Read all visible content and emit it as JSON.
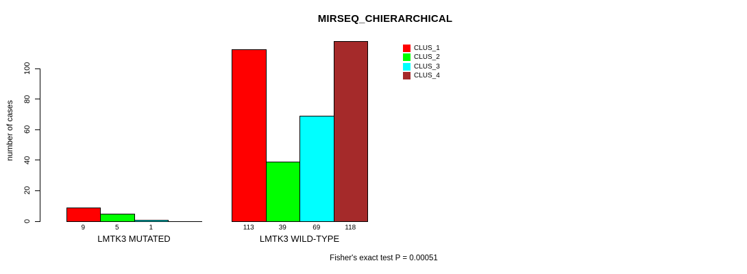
{
  "title": "MIRSEQ_CHIERARCHICAL",
  "y_axis": {
    "label": "number of cases",
    "ticks": [
      0,
      20,
      40,
      60,
      80,
      100
    ]
  },
  "legend": {
    "items": [
      {
        "label": "CLUS_1",
        "color": "#FF0000"
      },
      {
        "label": "CLUS_2",
        "color": "#00FF00"
      },
      {
        "label": "CLUS_3",
        "color": "#00FFFF"
      },
      {
        "label": "CLUS_4",
        "color": "#A52A2A"
      }
    ]
  },
  "footer": "Fisher's exact test P = 0.00051",
  "chart_data": {
    "type": "bar",
    "grouped": true,
    "title": "MIRSEQ_CHIERARCHICAL",
    "ylabel": "number of cases",
    "xlabel": "",
    "ylim": [
      0,
      118
    ],
    "yticks": [
      0,
      20,
      40,
      60,
      80,
      100
    ],
    "grid": false,
    "legend_position": "top-right",
    "categories": [
      "LMTK3 MUTATED",
      "LMTK3 WILD-TYPE"
    ],
    "series": [
      {
        "name": "CLUS_1",
        "color": "#FF0000",
        "values": [
          9,
          113
        ]
      },
      {
        "name": "CLUS_2",
        "color": "#00FF00",
        "values": [
          5,
          39
        ]
      },
      {
        "name": "CLUS_3",
        "color": "#00FFFF",
        "values": [
          1,
          69
        ]
      },
      {
        "name": "CLUS_4",
        "color": "#A52A2A",
        "values": [
          0,
          118
        ]
      }
    ],
    "value_labels": [
      [
        "9",
        "5",
        "1",
        ""
      ],
      [
        "113",
        "39",
        "69",
        "118"
      ]
    ],
    "annotation": "Fisher's exact test P = 0.00051"
  }
}
